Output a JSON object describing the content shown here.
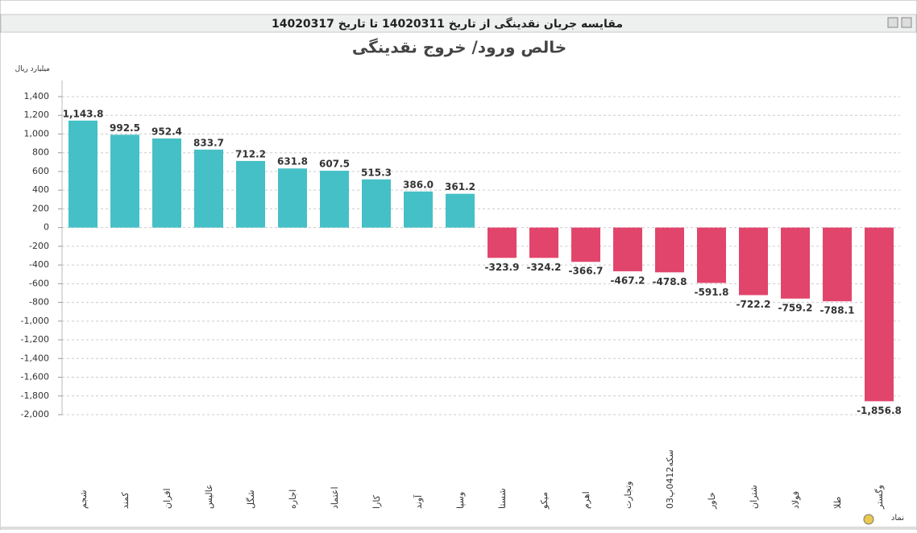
{
  "header": "مقایسه جریان نقدینگی از تاریخ 14020311 تا تاریخ 14020317",
  "chart_data": {
    "type": "bar",
    "title": "خالص ورود/ خروج نقدینگی",
    "y_label": "میلیارد ریال",
    "x_label": "نماد",
    "categories": [
      "شجم",
      "کمند",
      "افران",
      "عالیس",
      "شگل",
      "اجاره",
      "اعتماد",
      "کارا",
      "آوند",
      "وسپا",
      "شستا",
      "میکو",
      "اهرم",
      "وتجارت",
      "سکه0412پ03",
      "خاور",
      "شتران",
      "فولاد",
      "طلا",
      "وگستر"
    ],
    "values": [
      1143.8,
      992.5,
      952.4,
      833.7,
      712.2,
      631.8,
      607.5,
      515.3,
      386.0,
      361.2,
      -323.9,
      -324.2,
      -366.7,
      -467.2,
      -478.8,
      -591.8,
      -722.2,
      -759.2,
      -788.1,
      -1856.8
    ],
    "value_labels": [
      "1,143.8",
      "992.5",
      "952.4",
      "833.7",
      "712.2",
      "631.8",
      "607.5",
      "515.3",
      "386.0",
      "361.2",
      "-323.9",
      "-324.2",
      "-366.7",
      "-467.2",
      "-478.8",
      "-591.8",
      "-722.2",
      "-759.2",
      "-788.1",
      "-1,856.8"
    ],
    "positive_color": "#45c0c6",
    "negative_color": "#e2456b",
    "ylim": [
      -2000,
      1400
    ],
    "yticks": [
      {
        "value": -2000,
        "label": "-2,000"
      },
      {
        "value": -1800,
        "label": "-1,800"
      },
      {
        "value": -1600,
        "label": "-1,600"
      },
      {
        "value": -1400,
        "label": "-1,400"
      },
      {
        "value": -1200,
        "label": "-1,200"
      },
      {
        "value": -1000,
        "label": "-1,000"
      },
      -800,
      -600,
      -400,
      -200,
      0,
      200,
      400,
      600,
      800,
      {
        "value": 1000,
        "label": "1,000"
      },
      {
        "value": 1200,
        "label": "1,200"
      },
      {
        "value": 1400,
        "label": "1,400"
      }
    ],
    "grid": true
  }
}
